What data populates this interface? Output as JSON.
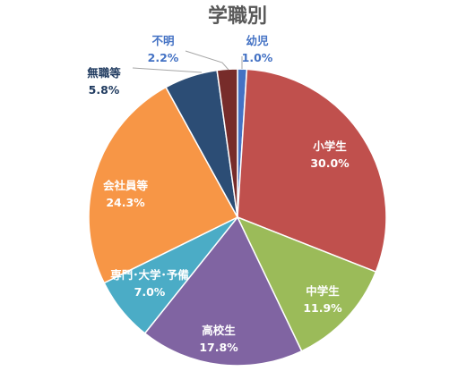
{
  "chart_data": {
    "type": "pie",
    "title": "学職別",
    "slices": [
      {
        "label": "幼児",
        "percent_label": "1.0%",
        "value": 1.0,
        "color": "#4472c4",
        "label_color": "#4472c4"
      },
      {
        "label": "小学生",
        "percent_label": "30.0%",
        "value": 30.0,
        "color": "#c0504d",
        "label_color": "#ffffff"
      },
      {
        "label": "中学生",
        "percent_label": "11.9%",
        "value": 11.9,
        "color": "#9bbb59",
        "label_color": "#ffffff"
      },
      {
        "label": "高校生",
        "percent_label": "17.8%",
        "value": 17.8,
        "color": "#8064a2",
        "label_color": "#ffffff"
      },
      {
        "label": "専門･大学･予備",
        "percent_label": "7.0%",
        "value": 7.0,
        "color": "#4bacc6",
        "label_color": "#ffffff"
      },
      {
        "label": "会社員等",
        "percent_label": "24.3%",
        "value": 24.3,
        "color": "#f79646",
        "label_color": "#ffffff"
      },
      {
        "label": "無職等",
        "percent_label": "5.8%",
        "value": 5.8,
        "color": "#2c4d75",
        "label_color": "#1f3a5f"
      },
      {
        "label": "不明",
        "percent_label": "2.2%",
        "value": 2.2,
        "color": "#772c2a",
        "label_color": "#4472c4"
      }
    ]
  }
}
